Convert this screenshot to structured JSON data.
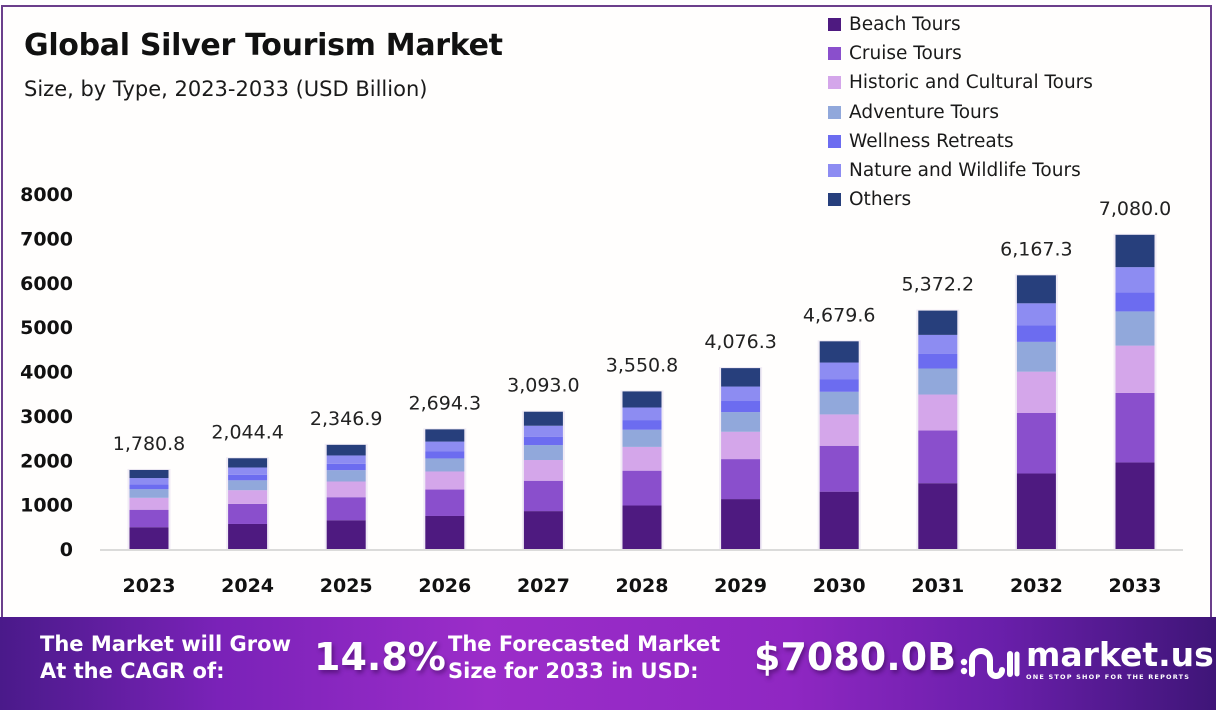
{
  "header": {
    "title": "Global Silver Tourism Market",
    "subtitle": "Size, by Type, 2023-2033 (USD Billion)"
  },
  "footer": {
    "cagr_text_line1": "The Market will Grow",
    "cagr_text_line2": "At the CAGR of:",
    "cagr_value": "14.8%",
    "forecast_text_line1": "The Forecasted Market",
    "forecast_text_line2": "Size for 2033 in USD:",
    "forecast_value": "$7080.0B",
    "brand_name": "market.us",
    "brand_tagline": "ONE STOP SHOP FOR THE REPORTS"
  },
  "chart_data": {
    "type": "bar",
    "stacked": true,
    "title": "Global Silver Tourism Market",
    "subtitle": "Size, by Type, 2023-2033 (USD Billion)",
    "xlabel": "",
    "ylabel": "USD Billion",
    "ylim": [
      0,
      8000
    ],
    "yticks": [
      0,
      1000,
      2000,
      3000,
      4000,
      5000,
      6000,
      7000,
      8000
    ],
    "grid": false,
    "legend_position": "top-right",
    "categories": [
      "2023",
      "2024",
      "2025",
      "2026",
      "2027",
      "2028",
      "2029",
      "2030",
      "2031",
      "2032",
      "2033"
    ],
    "totals": [
      1780.8,
      2044.4,
      2346.9,
      2694.3,
      3093.0,
      3550.8,
      4076.3,
      4679.6,
      5372.2,
      6167.3,
      7080.0
    ],
    "total_labels": [
      "1,780.8",
      "2,044.4",
      "2,346.9",
      "2,694.3",
      "3,093.0",
      "3,550.8",
      "4,076.3",
      "4,679.6",
      "5,372.2",
      "6,167.3",
      "7,080.0"
    ],
    "series": [
      {
        "name": "Beach Tours",
        "color": "#4e1a80",
        "values": [
          491,
          564,
          648,
          744,
          854,
          980,
          1125,
          1292,
          1483,
          1702,
          1951
        ]
      },
      {
        "name": "Cruise Tours",
        "color": "#8a4fcc",
        "values": [
          394,
          452,
          519,
          596,
          684,
          785,
          901,
          1034,
          1187,
          1363,
          1566
        ]
      },
      {
        "name": "Historic and Cultural Tours",
        "color": "#d4a6ea",
        "values": [
          269,
          309,
          354,
          407,
          467,
          536,
          616,
          707,
          811,
          931,
          1066
        ]
      },
      {
        "name": "Adventure Tours",
        "color": "#91a8db",
        "values": [
          194,
          223,
          256,
          294,
          337,
          387,
          444,
          510,
          586,
          672,
          771
        ]
      },
      {
        "name": "Wellness Retreats",
        "color": "#6c6cf0",
        "values": [
          109,
          125,
          143,
          164,
          189,
          217,
          249,
          285,
          328,
          376,
          431
        ]
      },
      {
        "name": "Nature and Wildlife Tours",
        "color": "#8d8cf2",
        "values": [
          142,
          164,
          188,
          216,
          247,
          284,
          326,
          374,
          430,
          493,
          567
        ]
      },
      {
        "name": "Others",
        "color": "#273f7c",
        "values": [
          182,
          208,
          239,
          275,
          315,
          362,
          415,
          478,
          547,
          630,
          728
        ]
      }
    ]
  }
}
